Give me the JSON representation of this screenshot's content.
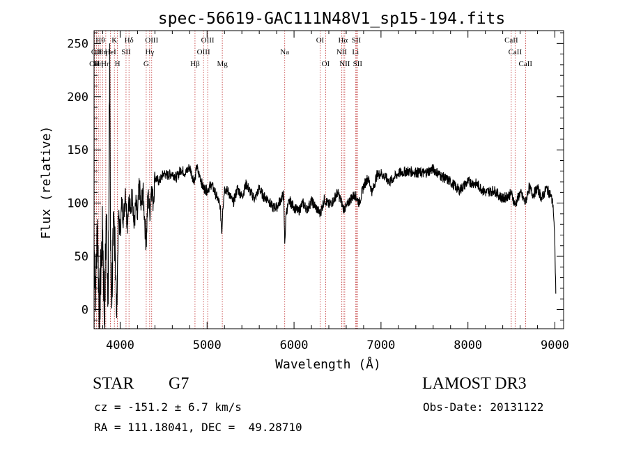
{
  "chart_data": {
    "type": "line",
    "title": "spec-56619-GAC111N48V1_sp15-194.fits",
    "xlabel": "Wavelength (Å)",
    "ylabel": "Flux (relative)",
    "xlim": [
      3700,
      9100
    ],
    "ylim": [
      -18,
      262
    ],
    "xticks": [
      4000,
      5000,
      6000,
      7000,
      8000,
      9000
    ],
    "yticks": [
      0,
      50,
      100,
      150,
      200,
      250
    ],
    "x_minor_step": 200,
    "y_minor_step": 10,
    "series": [
      {
        "name": "flux",
        "x": [
          3700,
          3720,
          3740,
          3760,
          3780,
          3800,
          3820,
          3840,
          3860,
          3870,
          3880,
          3890,
          3900,
          3920,
          3940,
          3960,
          3980,
          4000,
          4020,
          4040,
          4060,
          4080,
          4100,
          4120,
          4140,
          4160,
          4180,
          4200,
          4220,
          4240,
          4260,
          4280,
          4300,
          4320,
          4340,
          4360,
          4380,
          4400,
          4450,
          4500,
          4550,
          4600,
          4650,
          4700,
          4750,
          4800,
          4830,
          4860,
          4880,
          4900,
          4920,
          4950,
          5000,
          5050,
          5100,
          5150,
          5170,
          5180,
          5200,
          5250,
          5300,
          5350,
          5400,
          5450,
          5500,
          5550,
          5600,
          5650,
          5700,
          5750,
          5800,
          5850,
          5880,
          5893,
          5910,
          5950,
          6000,
          6050,
          6100,
          6150,
          6200,
          6250,
          6300,
          6350,
          6400,
          6450,
          6500,
          6550,
          6563,
          6600,
          6650,
          6700,
          6750,
          6800,
          6850,
          6900,
          6950,
          7000,
          7050,
          7100,
          7150,
          7200,
          7300,
          7400,
          7500,
          7600,
          7700,
          7800,
          7900,
          8000,
          8100,
          8200,
          8300,
          8400,
          8500,
          8542,
          8600,
          8662,
          8700,
          8750,
          8800,
          8850,
          8900,
          8950,
          8980,
          9000,
          9010
        ],
        "y": [
          60,
          20,
          85,
          -10,
          40,
          75,
          -15,
          90,
          20,
          75,
          250,
          55,
          10,
          60,
          78,
          -8,
          88,
          74,
          100,
          84,
          114,
          80,
          106,
          90,
          113,
          76,
          100,
          84,
          120,
          93,
          114,
          88,
          60,
          110,
          90,
          116,
          100,
          124,
          120,
          128,
          126,
          128,
          124,
          132,
          128,
          134,
          125,
          121,
          135,
          128,
          125,
          115,
          112,
          118,
          108,
          98,
          72,
          95,
          114,
          110,
          100,
          114,
          106,
          118,
          110,
          104,
          114,
          106,
          104,
          96,
          96,
          104,
          108,
          62,
          92,
          102,
          96,
          92,
          100,
          94,
          102,
          96,
          90,
          104,
          98,
          102,
          110,
          100,
          95,
          96,
          104,
          108,
          100,
          116,
          124,
          110,
          126,
          128,
          124,
          120,
          124,
          128,
          130,
          129,
          128,
          132,
          125,
          120,
          112,
          120,
          118,
          110,
          112,
          104,
          109,
          98,
          110,
          100,
          115,
          108,
          114,
          104,
          114,
          108,
          98,
          60,
          15
        ]
      }
    ],
    "lines": [
      {
        "wavelength": 3706,
        "label": "OII",
        "row": 3
      },
      {
        "wavelength": 3728,
        "label": "OII",
        "row": 2
      },
      {
        "wavelength": 3750,
        "label": "Hη",
        "row": 3
      },
      {
        "wavelength": 3771,
        "label": "Hθ",
        "row": 1
      },
      {
        "wavelength": 3798,
        "label": "Hη",
        "row": 2
      },
      {
        "wavelength": 3835,
        "label": "Hη",
        "row": 3
      },
      {
        "wavelength": 3889,
        "label": "HeI",
        "row": 2
      },
      {
        "wavelength": 3934,
        "label": "K",
        "row": 1
      },
      {
        "wavelength": 3969,
        "label": "H",
        "row": 3
      },
      {
        "wavelength": 4068,
        "label": "SII",
        "row": 2
      },
      {
        "wavelength": 4102,
        "label": "Hδ",
        "row": 1
      },
      {
        "wavelength": 4300,
        "label": "G",
        "row": 3
      },
      {
        "wavelength": 4340,
        "label": "Hγ",
        "row": 2
      },
      {
        "wavelength": 4363,
        "label": "OIII",
        "row": 1
      },
      {
        "wavelength": 4861,
        "label": "Hβ",
        "row": 3
      },
      {
        "wavelength": 4959,
        "label": "OIII",
        "row": 2
      },
      {
        "wavelength": 5007,
        "label": "OIII",
        "row": 1
      },
      {
        "wavelength": 5175,
        "label": "Mg",
        "row": 3
      },
      {
        "wavelength": 5893,
        "label": "Na",
        "row": 2
      },
      {
        "wavelength": 6300,
        "label": "OI",
        "row": 1
      },
      {
        "wavelength": 6363,
        "label": "OI",
        "row": 3
      },
      {
        "wavelength": 6548,
        "label": "NII",
        "row": 2
      },
      {
        "wavelength": 6563,
        "label": "Hα",
        "row": 1
      },
      {
        "wavelength": 6583,
        "label": "NII",
        "row": 3
      },
      {
        "wavelength": 6707,
        "label": "Li",
        "row": 2
      },
      {
        "wavelength": 6716,
        "label": "SII",
        "row": 1
      },
      {
        "wavelength": 6731,
        "label": "SII",
        "row": 3
      },
      {
        "wavelength": 8498,
        "label": "CaII",
        "row": 1
      },
      {
        "wavelength": 8542,
        "label": "CaII",
        "row": 2
      },
      {
        "wavelength": 8662,
        "label": "CaII",
        "row": 3
      }
    ],
    "colors": {
      "spectrum": "#000000",
      "line_marker": "#c03030",
      "axis": "#000000"
    }
  },
  "info": {
    "object_class": "STAR",
    "subclass": "G7",
    "survey": "LAMOST DR3",
    "redshift": "cz = -151.2 ± 6.7 km/s",
    "obs_date": "Obs-Date: 20131122",
    "coords": "RA = 111.18041, DEC =  49.28710"
  }
}
